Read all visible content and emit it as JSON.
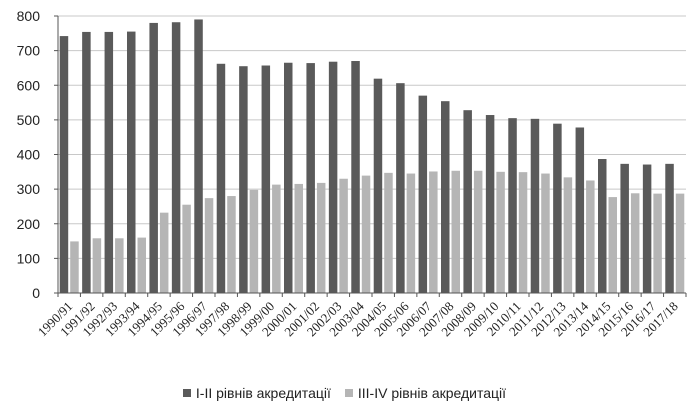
{
  "chart_data": {
    "type": "bar",
    "categories": [
      "1990/91",
      "1991/92",
      "1992/93",
      "1993/94",
      "1994/95",
      "1995/96",
      "1996/97",
      "1997/98",
      "1998/99",
      "1999/00",
      "2000/01",
      "2001/02",
      "2002/03",
      "2003/04",
      "2004/05",
      "2005/06",
      "2006/07",
      "2007/08",
      "2008/09",
      "2009/10",
      "2010/11",
      "2011/12",
      "2012/13",
      "2013/14",
      "2014/15",
      "2015/16",
      "2016/17",
      "2017/18"
    ],
    "series": [
      {
        "name": "I-II рівнів акредитації",
        "color": "#5a5a5a",
        "values": [
          742,
          754,
          754,
          755,
          780,
          782,
          790,
          662,
          655,
          657,
          665,
          664,
          668,
          670,
          619,
          606,
          570,
          554,
          528,
          514,
          505,
          503,
          489,
          478,
          387,
          373,
          371,
          373
        ]
      },
      {
        "name": "III-IV рівнів акредитації",
        "color": "#b5b5b5",
        "values": [
          149,
          158,
          158,
          160,
          232,
          255,
          274,
          280,
          298,
          313,
          315,
          318,
          330,
          339,
          347,
          345,
          351,
          353,
          353,
          350,
          349,
          345,
          334,
          325,
          277,
          288,
          287,
          287
        ]
      }
    ],
    "ylim": [
      0,
      800
    ],
    "yticks": [
      "0",
      "100",
      "200",
      "300",
      "400",
      "500",
      "600",
      "700",
      "800"
    ],
    "grid": true,
    "legend_position": "bottom"
  }
}
